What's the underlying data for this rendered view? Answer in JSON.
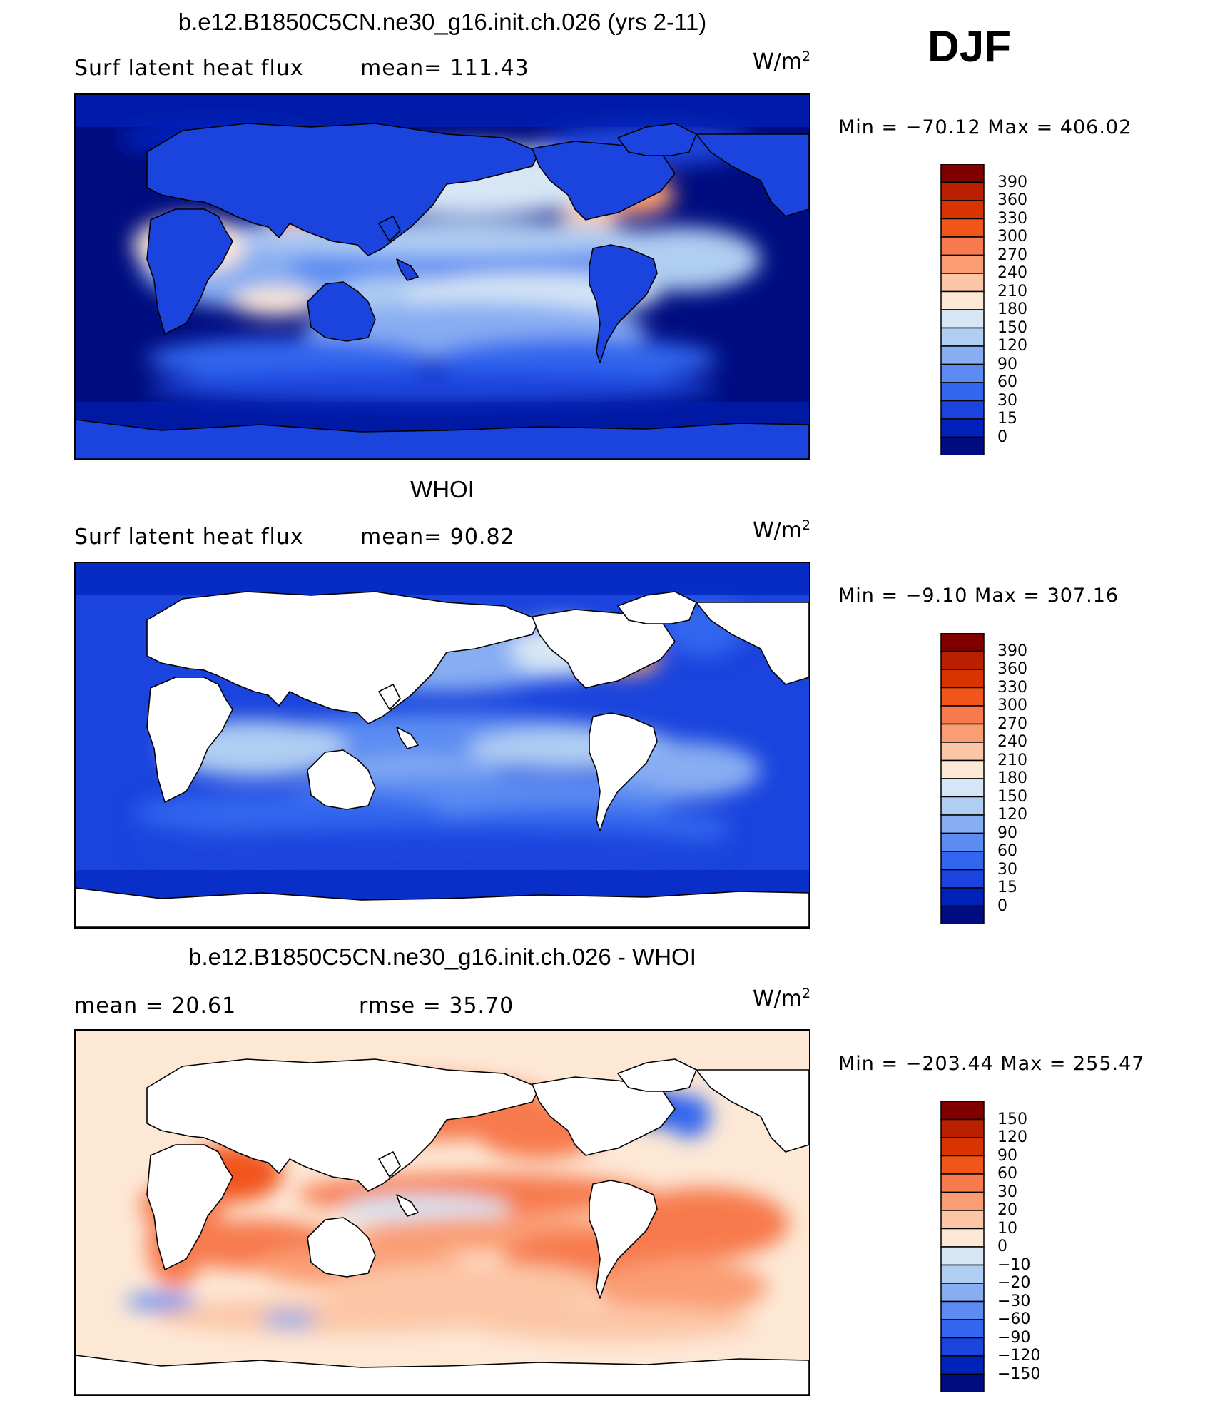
{
  "season": "DJF",
  "panels": [
    {
      "title": "b.e12.B1850C5CN.ne30_g16.init.ch.026 (yrs 2-11)",
      "left_label": "Surf  latent  heat  flux",
      "mid_label": "mean=  111.43",
      "unit_base": "W/m",
      "unit_exp": "2",
      "minmax": "Min  =  −70.12  Max  =  406.02",
      "ocean_only": false,
      "palette": "absolute"
    },
    {
      "title": "WHOI",
      "left_label": "Surf  latent  heat  flux",
      "mid_label": "mean=   90.82",
      "unit_base": "W/m",
      "unit_exp": "2",
      "minmax": "Min  =   −9.10  Max  =  307.16",
      "ocean_only": true,
      "palette": "absolute"
    },
    {
      "title": "b.e12.B1850C5CN.ne30_g16.init.ch.026 - WHOI",
      "left_label": "mean  =    20.61",
      "mid_label": "rmse  =    35.70",
      "unit_base": "W/m",
      "unit_exp": "2",
      "minmax": "Min  =  −203.44  Max  =  255.47",
      "ocean_only": true,
      "palette": "difference"
    }
  ],
  "colorbars": {
    "absolute": {
      "levels": [
        "390",
        "360",
        "330",
        "300",
        "270",
        "240",
        "210",
        "180",
        "150",
        "120",
        "90",
        "60",
        "30",
        "15",
        "0"
      ],
      "colors": [
        "#800000",
        "#b82000",
        "#d93300",
        "#f2551a",
        "#f77a4d",
        "#fa9d73",
        "#fcc6a6",
        "#fde8d6",
        "#d6e6f5",
        "#b0cdf2",
        "#87adf2",
        "#5c8cf2",
        "#3366ee",
        "#1a44dd",
        "#0022bb",
        "#000d80"
      ]
    },
    "difference": {
      "levels": [
        "150",
        "120",
        "90",
        "60",
        "30",
        "20",
        "10",
        "0",
        "−10",
        "−20",
        "−30",
        "−60",
        "−90",
        "−120",
        "−150"
      ],
      "colors": [
        "#800000",
        "#b82000",
        "#d93300",
        "#f2551a",
        "#f77a4d",
        "#fa9d73",
        "#fcc6a6",
        "#fde8d6",
        "#d6e6f5",
        "#b0cdf2",
        "#87adf2",
        "#5c8cf2",
        "#3366ee",
        "#1a44dd",
        "#0022bb",
        "#000d80"
      ]
    }
  },
  "chart_data": [
    {
      "type": "heatmap",
      "title": "b.e12.B1850C5CN.ne30_g16.init.ch.026 (yrs 2-11)",
      "variable": "Surf latent heat flux",
      "units": "W/m2",
      "mean": 111.43,
      "min": -70.12,
      "max": 406.02,
      "contour_levels": [
        0,
        15,
        30,
        60,
        90,
        120,
        150,
        180,
        210,
        240,
        270,
        300,
        330,
        360,
        390
      ]
    },
    {
      "type": "heatmap",
      "title": "WHOI",
      "variable": "Surf latent heat flux",
      "units": "W/m2",
      "mean": 90.82,
      "min": -9.1,
      "max": 307.16,
      "contour_levels": [
        0,
        15,
        30,
        60,
        90,
        120,
        150,
        180,
        210,
        240,
        270,
        300,
        330,
        360,
        390
      ]
    },
    {
      "type": "heatmap",
      "title": "b.e12.B1850C5CN.ne30_g16.init.ch.026 - WHOI",
      "units": "W/m2",
      "mean": 20.61,
      "rmse": 35.7,
      "min": -203.44,
      "max": 255.47,
      "contour_levels": [
        -150,
        -120,
        -90,
        -60,
        -30,
        -20,
        -10,
        0,
        10,
        20,
        30,
        60,
        90,
        120,
        150
      ]
    }
  ]
}
